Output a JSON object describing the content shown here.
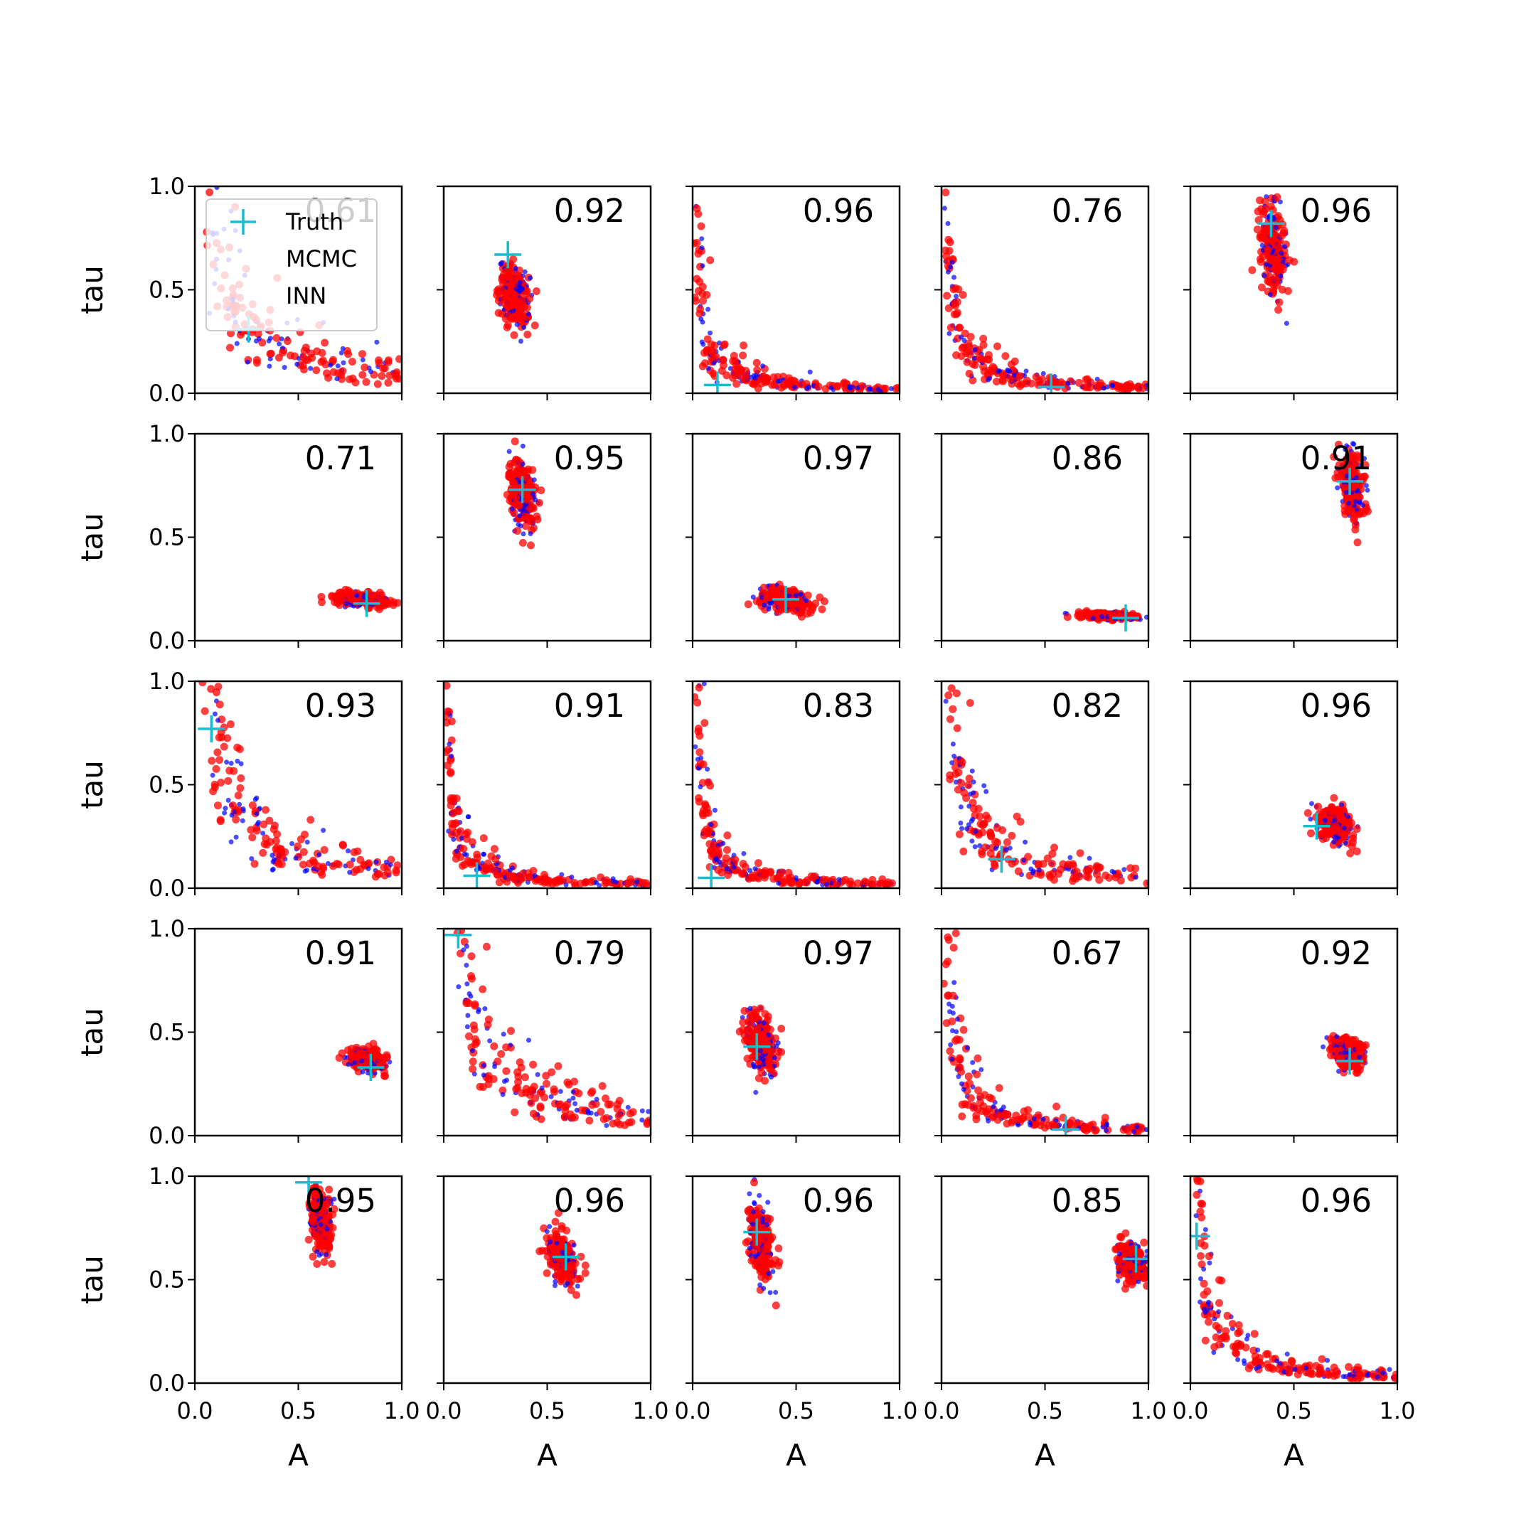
{
  "chart_data": {
    "type": "scatter",
    "layout": "5x5 grid of subplots",
    "xlabel": "A",
    "ylabel": "tau",
    "xlim": [
      0,
      1
    ],
    "ylim": [
      0,
      1
    ],
    "x_ticks": [
      "0.0",
      "0.5",
      "1.0"
    ],
    "y_ticks": [
      "0.0",
      "0.5",
      "1.0"
    ],
    "grid": false,
    "legend": {
      "placement": "top-left of first subplot",
      "entries": [
        {
          "label": "Truth",
          "marker": "plus",
          "color": "#17becf"
        },
        {
          "label": "MCMC",
          "marker": "dot",
          "color": "#0000ff"
        },
        {
          "label": "INN",
          "marker": "dot",
          "color": "#ff0000"
        }
      ]
    },
    "colors": {
      "truth": "#17becf",
      "mcmc": "#0000ff",
      "inn": "#ff0000"
    },
    "panels": [
      {
        "row": 1,
        "col": 1,
        "corr": "0.61",
        "truth": {
          "A": 0.26,
          "tau": 0.31
        },
        "shape": "hyperbola"
      },
      {
        "row": 1,
        "col": 2,
        "corr": "0.92",
        "truth": {
          "A": 0.31,
          "tau": 0.67
        },
        "shape": "blob",
        "center": {
          "A": 0.34,
          "tau": 0.47
        },
        "spread": {
          "A": 0.08,
          "tau": 0.17
        }
      },
      {
        "row": 1,
        "col": 3,
        "corr": "0.96",
        "truth": {
          "A": 0.12,
          "tau": 0.04
        },
        "shape": "hyperbola"
      },
      {
        "row": 1,
        "col": 4,
        "corr": "0.76",
        "truth": {
          "A": 0.53,
          "tau": 0.03
        },
        "shape": "hyperbola"
      },
      {
        "row": 1,
        "col": 5,
        "corr": "0.96",
        "truth": {
          "A": 0.39,
          "tau": 0.82
        },
        "shape": "blob",
        "center": {
          "A": 0.4,
          "tau": 0.7
        },
        "spread": {
          "A": 0.07,
          "tau": 0.25
        }
      },
      {
        "row": 2,
        "col": 1,
        "corr": "0.71",
        "truth": {
          "A": 0.83,
          "tau": 0.18
        },
        "shape": "blob",
        "center": {
          "A": 0.8,
          "tau": 0.2
        },
        "spread": {
          "A": 0.14,
          "tau": 0.04
        }
      },
      {
        "row": 2,
        "col": 2,
        "corr": "0.95",
        "truth": {
          "A": 0.38,
          "tau": 0.73
        },
        "shape": "blob",
        "center": {
          "A": 0.38,
          "tau": 0.71
        },
        "spread": {
          "A": 0.07,
          "tau": 0.2
        }
      },
      {
        "row": 2,
        "col": 3,
        "corr": "0.97",
        "truth": {
          "A": 0.45,
          "tau": 0.2
        },
        "shape": "blob",
        "center": {
          "A": 0.45,
          "tau": 0.2
        },
        "spread": {
          "A": 0.15,
          "tau": 0.07
        }
      },
      {
        "row": 2,
        "col": 4,
        "corr": "0.86",
        "truth": {
          "A": 0.89,
          "tau": 0.11
        },
        "shape": "blob",
        "center": {
          "A": 0.8,
          "tau": 0.12
        },
        "spread": {
          "A": 0.14,
          "tau": 0.02
        }
      },
      {
        "row": 2,
        "col": 5,
        "corr": "0.91",
        "truth": {
          "A": 0.77,
          "tau": 0.77
        },
        "shape": "blob",
        "center": {
          "A": 0.78,
          "tau": 0.75
        },
        "spread": {
          "A": 0.07,
          "tau": 0.2
        }
      },
      {
        "row": 3,
        "col": 1,
        "corr": "0.93",
        "truth": {
          "A": 0.08,
          "tau": 0.77
        },
        "shape": "hyperbola"
      },
      {
        "row": 3,
        "col": 2,
        "corr": "0.91",
        "truth": {
          "A": 0.16,
          "tau": 0.06
        },
        "shape": "hyperbola"
      },
      {
        "row": 3,
        "col": 3,
        "corr": "0.83",
        "truth": {
          "A": 0.09,
          "tau": 0.05
        },
        "shape": "hyperbola"
      },
      {
        "row": 3,
        "col": 4,
        "corr": "0.82",
        "truth": {
          "A": 0.29,
          "tau": 0.14
        },
        "shape": "hyperbola"
      },
      {
        "row": 3,
        "col": 5,
        "corr": "0.96",
        "truth": {
          "A": 0.61,
          "tau": 0.3
        },
        "shape": "blob",
        "center": {
          "A": 0.7,
          "tau": 0.31
        },
        "spread": {
          "A": 0.1,
          "tau": 0.1
        }
      },
      {
        "row": 4,
        "col": 1,
        "corr": "0.91",
        "truth": {
          "A": 0.85,
          "tau": 0.33
        },
        "shape": "blob",
        "center": {
          "A": 0.83,
          "tau": 0.37
        },
        "spread": {
          "A": 0.1,
          "tau": 0.06
        }
      },
      {
        "row": 4,
        "col": 2,
        "corr": "0.79",
        "truth": {
          "A": 0.07,
          "tau": 0.97
        },
        "shape": "hyperbola"
      },
      {
        "row": 4,
        "col": 3,
        "corr": "0.97",
        "truth": {
          "A": 0.31,
          "tau": 0.43
        },
        "shape": "blob",
        "center": {
          "A": 0.33,
          "tau": 0.45
        },
        "spread": {
          "A": 0.08,
          "tau": 0.18
        }
      },
      {
        "row": 4,
        "col": 4,
        "corr": "0.67",
        "truth": {
          "A": 0.6,
          "tau": 0.03
        },
        "shape": "hyperbola"
      },
      {
        "row": 4,
        "col": 5,
        "corr": "0.92",
        "truth": {
          "A": 0.77,
          "tau": 0.36
        },
        "shape": "blob",
        "center": {
          "A": 0.76,
          "tau": 0.4
        },
        "spread": {
          "A": 0.09,
          "tau": 0.09
        }
      },
      {
        "row": 5,
        "col": 1,
        "corr": "0.95",
        "truth": {
          "A": 0.55,
          "tau": 0.97
        },
        "shape": "blob",
        "center": {
          "A": 0.61,
          "tau": 0.78
        },
        "spread": {
          "A": 0.06,
          "tau": 0.2
        }
      },
      {
        "row": 5,
        "col": 2,
        "corr": "0.96",
        "truth": {
          "A": 0.59,
          "tau": 0.61
        },
        "shape": "blob",
        "center": {
          "A": 0.57,
          "tau": 0.6
        },
        "spread": {
          "A": 0.08,
          "tau": 0.14
        }
      },
      {
        "row": 5,
        "col": 3,
        "corr": "0.96",
        "truth": {
          "A": 0.31,
          "tau": 0.73
        },
        "shape": "blob",
        "center": {
          "A": 0.33,
          "tau": 0.68
        },
        "spread": {
          "A": 0.06,
          "tau": 0.2
        }
      },
      {
        "row": 5,
        "col": 4,
        "corr": "0.85",
        "truth": {
          "A": 0.94,
          "tau": 0.6
        },
        "shape": "blob",
        "center": {
          "A": 0.92,
          "tau": 0.58
        },
        "spread": {
          "A": 0.08,
          "tau": 0.11
        }
      },
      {
        "row": 5,
        "col": 5,
        "corr": "0.96",
        "truth": {
          "A": 0.03,
          "tau": 0.71
        },
        "shape": "hyperbola"
      }
    ]
  }
}
